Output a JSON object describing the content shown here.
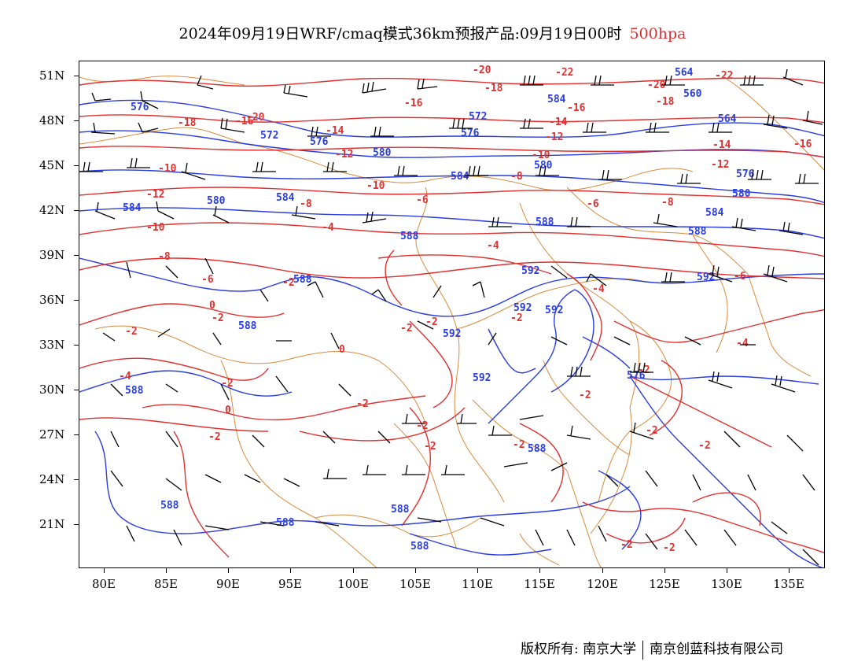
{
  "title": {
    "main": "2024年09月19日WRF/cmaq模式36km预报产品:09月19日00时",
    "level": "500hpa"
  },
  "map": {
    "colors": {
      "height_contour": "#2a3de0",
      "temperature_contour": "#e03030",
      "boundary": "#d98a3c",
      "wind_barb": "#000000"
    },
    "lat_labels": [
      "51N",
      "48N",
      "45N",
      "42N",
      "39N",
      "36N",
      "33N",
      "30N",
      "27N",
      "24N",
      "21N"
    ],
    "lon_labels": [
      "80E",
      "85E",
      "90E",
      "95E",
      "100E",
      "105E",
      "110E",
      "115E",
      "120E",
      "125E",
      "130E",
      "135E"
    ],
    "height_labels": [
      "576",
      "572",
      "576",
      "580",
      "584",
      "564",
      "560",
      "572",
      "576",
      "564",
      "580",
      "584",
      "580",
      "576",
      "580",
      "584",
      "588",
      "588",
      "588",
      "592",
      "592",
      "592",
      "592",
      "588",
      "592",
      "576",
      "588",
      "588",
      "588",
      "588",
      "584",
      "588",
      "588"
    ],
    "temperature_labels": [
      "-20",
      "-18",
      "-16",
      "-22",
      "-22",
      "-20",
      "-18",
      "-16",
      "-14",
      "-18",
      "-16",
      "-14",
      "-12",
      "-14",
      "-12",
      "-10",
      "-10",
      "-16",
      "-12",
      "-8",
      "-6",
      "-6",
      "-8",
      "-10",
      "-8",
      "-4",
      "-4",
      "-12",
      "-6",
      "-8",
      "-6",
      "-2",
      "-4",
      "0",
      "-2",
      "-2",
      "-2",
      "-4",
      "0",
      "-2",
      "-2",
      "-2",
      "0",
      "-2",
      "-2",
      "-2",
      "-2",
      "-2",
      "-2",
      "-4",
      "-2",
      "-2",
      "-2",
      "-2",
      "-2",
      "-2"
    ]
  },
  "footer": {
    "copyright": "版权所有: 南京大学",
    "company": "南京创蓝科技有限公司"
  }
}
